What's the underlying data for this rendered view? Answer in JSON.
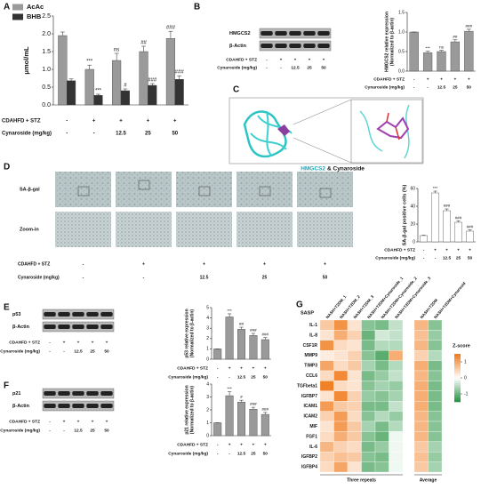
{
  "panel_labels": [
    "A",
    "B",
    "C",
    "D",
    "E",
    "F",
    "G"
  ],
  "chart_data": [
    {
      "type": "bar",
      "ylabel": "μmol/mL",
      "ylim": [
        0,
        2.5
      ],
      "yticks": [
        {
          "value": 0,
          "label": "0.0"
        },
        0.5,
        {
          "value": 1,
          "label": "1.0"
        },
        1.5,
        {
          "value": 2,
          "label": "2.0"
        },
        2.5
      ],
      "legend": "top-left",
      "series": [
        {
          "name": "AcAc",
          "color": "#9a9a9a",
          "values": [
            1.95,
            1.0,
            1.25,
            1.5,
            1.87
          ],
          "errors": [
            0.1,
            0.12,
            0.2,
            0.15,
            0.2
          ],
          "annotations": [
            null,
            "***",
            "ns",
            "##",
            "###"
          ]
        },
        {
          "name": "BHB",
          "color": "#333333",
          "values": [
            0.68,
            0.27,
            0.4,
            0.55,
            0.72
          ],
          "errors": [
            0.05,
            0.03,
            0.05,
            0.05,
            0.1
          ],
          "annotations": [
            null,
            "***",
            "#",
            "###",
            "###"
          ]
        }
      ],
      "rows": [
        {
          "label": "CDAHFD + STZ",
          "values": [
            "-",
            "+",
            "+",
            "+",
            "+"
          ]
        },
        {
          "label": "Cynaroside (mg/kg)",
          "values": [
            "-",
            "-",
            "12.5",
            "25",
            "50"
          ]
        }
      ]
    },
    {
      "type": "bar",
      "ylabel": [
        "HMGCS2 relative expression",
        "(Normalized to β-actin)"
      ],
      "ylim": [
        0,
        1.5
      ],
      "yticks": [
        {
          "value": 0,
          "label": "0.0"
        },
        0.5,
        {
          "value": 1,
          "label": "1.0"
        },
        1.5
      ],
      "series": [
        {
          "name": "HMGCS2",
          "color": "#9a9a9a",
          "values": [
            1.0,
            0.47,
            0.5,
            0.75,
            1.02
          ],
          "errors": [
            0,
            0.04,
            0.03,
            0.05,
            0.05
          ],
          "annotations": [
            null,
            "***",
            "ns",
            "##",
            "###"
          ]
        }
      ],
      "rows": [
        {
          "label": "CDAHFD + STZ",
          "values": [
            "-",
            "+",
            "+",
            "+",
            "+"
          ]
        },
        {
          "label": "Cynaroside (mg/kg)",
          "values": [
            "-",
            "-",
            "12.5",
            "25",
            "50"
          ]
        }
      ]
    },
    {
      "type": "bar",
      "ylabel": "SA-β-gal positive cells (%)",
      "ylim": [
        0,
        60
      ],
      "yticks": [
        0,
        20,
        40,
        60
      ],
      "series": [
        {
          "name": "SA-β-gal",
          "color": "#ffffff",
          "values": [
            7,
            55,
            35,
            22,
            12
          ],
          "errors": [
            0.5,
            2,
            2,
            1.5,
            1.5
          ],
          "annotations": [
            null,
            "***",
            "###",
            "###",
            "###"
          ]
        }
      ],
      "rows": [
        {
          "label": "CDAHFD + STZ",
          "values": [
            "-",
            "+",
            "+",
            "+",
            "+"
          ]
        },
        {
          "label": "Cynaroside (mg/kg)",
          "values": [
            "-",
            "-",
            "12.5",
            "25",
            "50"
          ]
        }
      ]
    },
    {
      "type": "bar",
      "ylabel": [
        "p53 relative expression",
        "(Normalized to β-actin)"
      ],
      "ylim": [
        0,
        5
      ],
      "yticks": [
        0,
        1,
        2,
        3,
        4,
        5
      ],
      "series": [
        {
          "name": "p53",
          "color": "#9a9a9a",
          "values": [
            1.0,
            4.1,
            2.9,
            2.3,
            1.9
          ],
          "errors": [
            0,
            0.3,
            0.2,
            0.2,
            0.2
          ],
          "annotations": [
            null,
            "***",
            "##",
            "###",
            "###"
          ]
        }
      ],
      "rows": [
        {
          "label": "CDAHFD + STZ",
          "values": [
            "-",
            "+",
            "+",
            "+",
            "+"
          ]
        },
        {
          "label": "Cynaroside (mg/kg)",
          "values": [
            "-",
            "-",
            "12.5",
            "25",
            "50"
          ]
        }
      ]
    },
    {
      "type": "bar",
      "ylabel": [
        "p21 relative expression",
        "(Normalized to β-actin)"
      ],
      "ylim": [
        0,
        4
      ],
      "yticks": [
        0,
        1,
        2,
        3,
        4
      ],
      "series": [
        {
          "name": "p21",
          "color": "#9a9a9a",
          "values": [
            1.0,
            3.1,
            2.6,
            2.05,
            1.65
          ],
          "errors": [
            0,
            0.3,
            0.15,
            0.15,
            0.15
          ],
          "annotations": [
            null,
            "***",
            "#",
            "###",
            "###"
          ]
        }
      ],
      "rows": [
        {
          "label": "CDAHFD + STZ",
          "values": [
            "-",
            "+",
            "+",
            "+",
            "+"
          ]
        },
        {
          "label": "Cynaroside (mg/kg)",
          "values": [
            "-",
            "-",
            "12.5",
            "25",
            "50"
          ]
        }
      ]
    },
    {
      "type": "heatmap",
      "row_header": "SASP",
      "rows": [
        "IL-1",
        "IL-8",
        "CSF1R",
        "MMP9",
        "TIMP3",
        "CCL6",
        "TGFbeta1",
        "IGFBP7",
        "ICAM1",
        "ICAM2",
        "MIF",
        "FGF1",
        "IL-6",
        "IGFBP2",
        "IGFBP4"
      ],
      "column_groups": [
        {
          "name": "Three repeats",
          "columns": [
            "NASH+T2DM_1",
            "NASH+T2DM_2",
            "NASH+T2DM_3",
            "NASH+T2DM+Cynaroside_1",
            "NASH+T2DM+Cynaroside_2",
            "NASH+T2DM+Cynaroside_3"
          ]
        },
        {
          "name": "Average",
          "columns": [
            "NASH+T2DM",
            "NASH+T2DM+Cynarosid"
          ]
        }
      ],
      "values": [
        [
          0.6,
          1.2,
          0.3,
          -0.8,
          -0.9,
          -0.4,
          0.8,
          -0.8
        ],
        [
          0.3,
          0.9,
          0.5,
          -1.0,
          -0.3,
          -0.4,
          0.7,
          -0.7
        ],
        [
          1.2,
          0.4,
          0.3,
          -0.9,
          -0.5,
          -0.5,
          0.8,
          -0.8
        ],
        [
          0.2,
          0.3,
          0.5,
          -0.8,
          -1.1,
          0.9,
          0.5,
          -0.5
        ],
        [
          1.0,
          0.4,
          0.6,
          -0.6,
          -0.9,
          -0.5,
          0.9,
          -0.9
        ],
        [
          0.4,
          1.3,
          0.3,
          -0.9,
          -0.7,
          -0.4,
          0.8,
          -0.8
        ],
        [
          1.4,
          0.4,
          0.3,
          -0.8,
          -0.6,
          -0.7,
          0.9,
          -0.9
        ],
        [
          0.3,
          1.3,
          0.5,
          -0.7,
          -0.8,
          -0.6,
          0.9,
          -0.9
        ],
        [
          1.1,
          0.6,
          0.5,
          -0.9,
          -0.9,
          -0.4,
          0.9,
          -0.9
        ],
        [
          0.5,
          1.1,
          0.4,
          -0.8,
          -0.5,
          -0.7,
          0.8,
          -0.8
        ],
        [
          0.3,
          1.1,
          0.6,
          -0.6,
          -0.9,
          -0.5,
          0.8,
          -0.8
        ],
        [
          0.4,
          0.9,
          0.6,
          -0.8,
          -1.0,
          -0.1,
          0.8,
          -0.8
        ],
        [
          0.8,
          0.5,
          0.4,
          -0.9,
          -0.7,
          -0.1,
          0.6,
          -0.6
        ],
        [
          0.5,
          0.7,
          0.6,
          -0.8,
          -0.9,
          -0.1,
          0.7,
          -0.7
        ],
        [
          0.4,
          1.0,
          0.3,
          -0.9,
          -0.8,
          -0.1,
          0.6,
          -0.6
        ]
      ],
      "colorbar_label": "Z-score",
      "zlim": [
        -1.5,
        1.5
      ],
      "zticks": [
        1,
        0,
        -1
      ],
      "colors": [
        "#1f8f3a",
        "#ffffff",
        "#f07818"
      ]
    }
  ],
  "blots": [
    {
      "proteins": [
        "HMGCS2",
        "β-Actin"
      ],
      "rows": [
        {
          "label": "CDAHFD + STZ",
          "values": [
            "-",
            "+",
            "+",
            "+",
            "+"
          ]
        },
        {
          "label": "Cynaroside (mg/kg)",
          "values": [
            "-",
            "-",
            "12.5",
            "25",
            "50"
          ]
        }
      ]
    },
    {
      "proteins": [
        "p53",
        "β-Actin"
      ],
      "rows": [
        {
          "label": "CDAHFD + STZ",
          "values": [
            "-",
            "+",
            "+",
            "+",
            "+"
          ]
        },
        {
          "label": "Cynaroside (mg/kg)",
          "values": [
            "-",
            "-",
            "12.5",
            "25",
            "50"
          ]
        }
      ]
    },
    {
      "proteins": [
        "p21",
        "β-Actin"
      ],
      "rows": [
        {
          "label": "CDAHFD + STZ",
          "values": [
            "-",
            "+",
            "+",
            "+",
            "+"
          ]
        },
        {
          "label": "Cynaroside (mg/kg)",
          "values": [
            "-",
            "-",
            "12.5",
            "25",
            "50"
          ]
        }
      ]
    }
  ],
  "docking": {
    "protein": "HMGCS2",
    "ligand": "& Cynaroside"
  },
  "staining": {
    "row_labels": [
      "SA-β-gal",
      "Zoom-in"
    ],
    "rows": [
      {
        "label": "CDAHFD + STZ",
        "values": [
          "-",
          "+",
          "+",
          "+",
          "+"
        ]
      },
      {
        "label": "Cynaroside (mg/kg)",
        "values": [
          "-",
          "-",
          "12.5",
          "25",
          "50"
        ]
      }
    ]
  }
}
